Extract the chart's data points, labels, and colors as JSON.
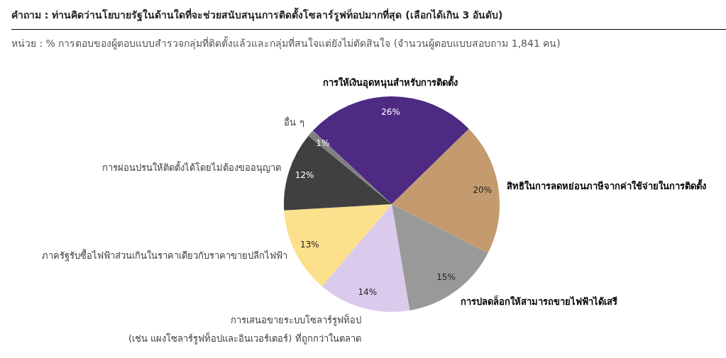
{
  "chart_data": {
    "type": "pie",
    "title": "คำถาม : ท่านคิดว่านโยบายรัฐในด้านใดที่จะช่วยสนับสนุนการติดตั้งโซลาร์รูฟท็อปมากที่สุด (เลือกได้เกิน 3 อันดับ)",
    "subtitle": "หน่วย : % การตอบของผู้ตอบแบบสำรวจกลุ่มที่ติดตั้งแล้วและกลุ่มที่สนใจแต่ยังไม่ตัดสินใจ (จำนวนผู้ตอบแบบสอบถาม 1,841 คน)",
    "categories": [
      "การให้เงินอุดหนุนสำหรับการติดตั้ง",
      "สิทธิในการลดหย่อนภาษีจากค่าใช้จ่ายในการติดตั้ง",
      "การปลดล็อกให้สามารถขายไฟฟ้าได้เสรี",
      "การเสนอขายระบบโซลาร์รูฟท็อป\n(เช่น แผงโซลาร์รูฟท็อปและอินเวอร์เตอร์) ที่ถูกกว่าในตลาด",
      "ภาครัฐรับซื้อไฟฟ้าส่วนเกินในราคาเดียวกับราคาขายปลีกไฟฟ้า",
      "การผ่อนปรนให้ติดตั้งได้โดยไม่ต้องขออนุญาต",
      "อื่น ๆ"
    ],
    "values": [
      26,
      20,
      15,
      14,
      13,
      12,
      1
    ],
    "value_labels": [
      "26%",
      "20%",
      "15%",
      "14%",
      "13%",
      "12%",
      "1%"
    ],
    "colors": [
      "#4e2a82",
      "#c49a6f",
      "#999999",
      "#dacbec",
      "#fde08b",
      "#404040",
      "#808080"
    ],
    "legend": false
  }
}
